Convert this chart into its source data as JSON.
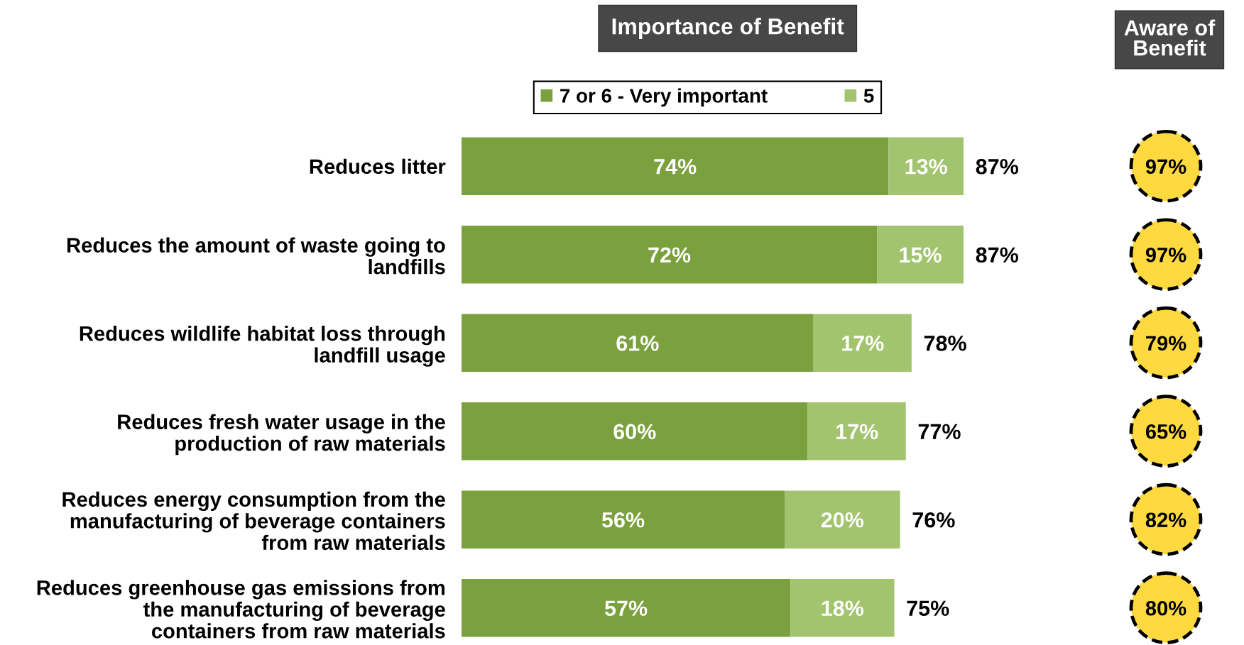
{
  "chart_data": [
    {
      "type": "bar",
      "orientation": "horizontal",
      "stacked": true,
      "title": "Importance of Benefit",
      "categories": [
        "Reduces litter",
        "Reduces the amount of waste going to\nlandfills",
        "Reduces wildlife habitat loss through\nlandfill usage",
        "Reduces fresh water usage in the\nproduction of raw materials",
        "Reduces energy consumption from the\nmanufacturing of beverage containers\nfrom raw materials",
        "Reduces greenhouse gas emissions from\nthe manufacturing of beverage\ncontainers from raw materials"
      ],
      "series": [
        {
          "name": "7 or 6 - Very important",
          "color": "#7aa13e",
          "values": [
            74,
            72,
            61,
            60,
            56,
            57
          ],
          "value_labels": [
            "74%",
            "72%",
            "61%",
            "60%",
            "56%",
            "57%"
          ]
        },
        {
          "name": "5",
          "color": "#a2c46e",
          "values": [
            13,
            15,
            17,
            17,
            20,
            18
          ],
          "value_labels": [
            "13%",
            "15%",
            "17%",
            "17%",
            "20%",
            "18%"
          ]
        }
      ],
      "totals": [
        "87%",
        "87%",
        "78%",
        "77%",
        "76%",
        "75%"
      ],
      "legend": "top",
      "tick_labels": "y"
    },
    {
      "type": "other",
      "title": "Aware of\nBenefit",
      "annotations": [
        "97%",
        "97%",
        "79%",
        "65%",
        "82%",
        "80%"
      ],
      "color": "#ffd940"
    }
  ]
}
